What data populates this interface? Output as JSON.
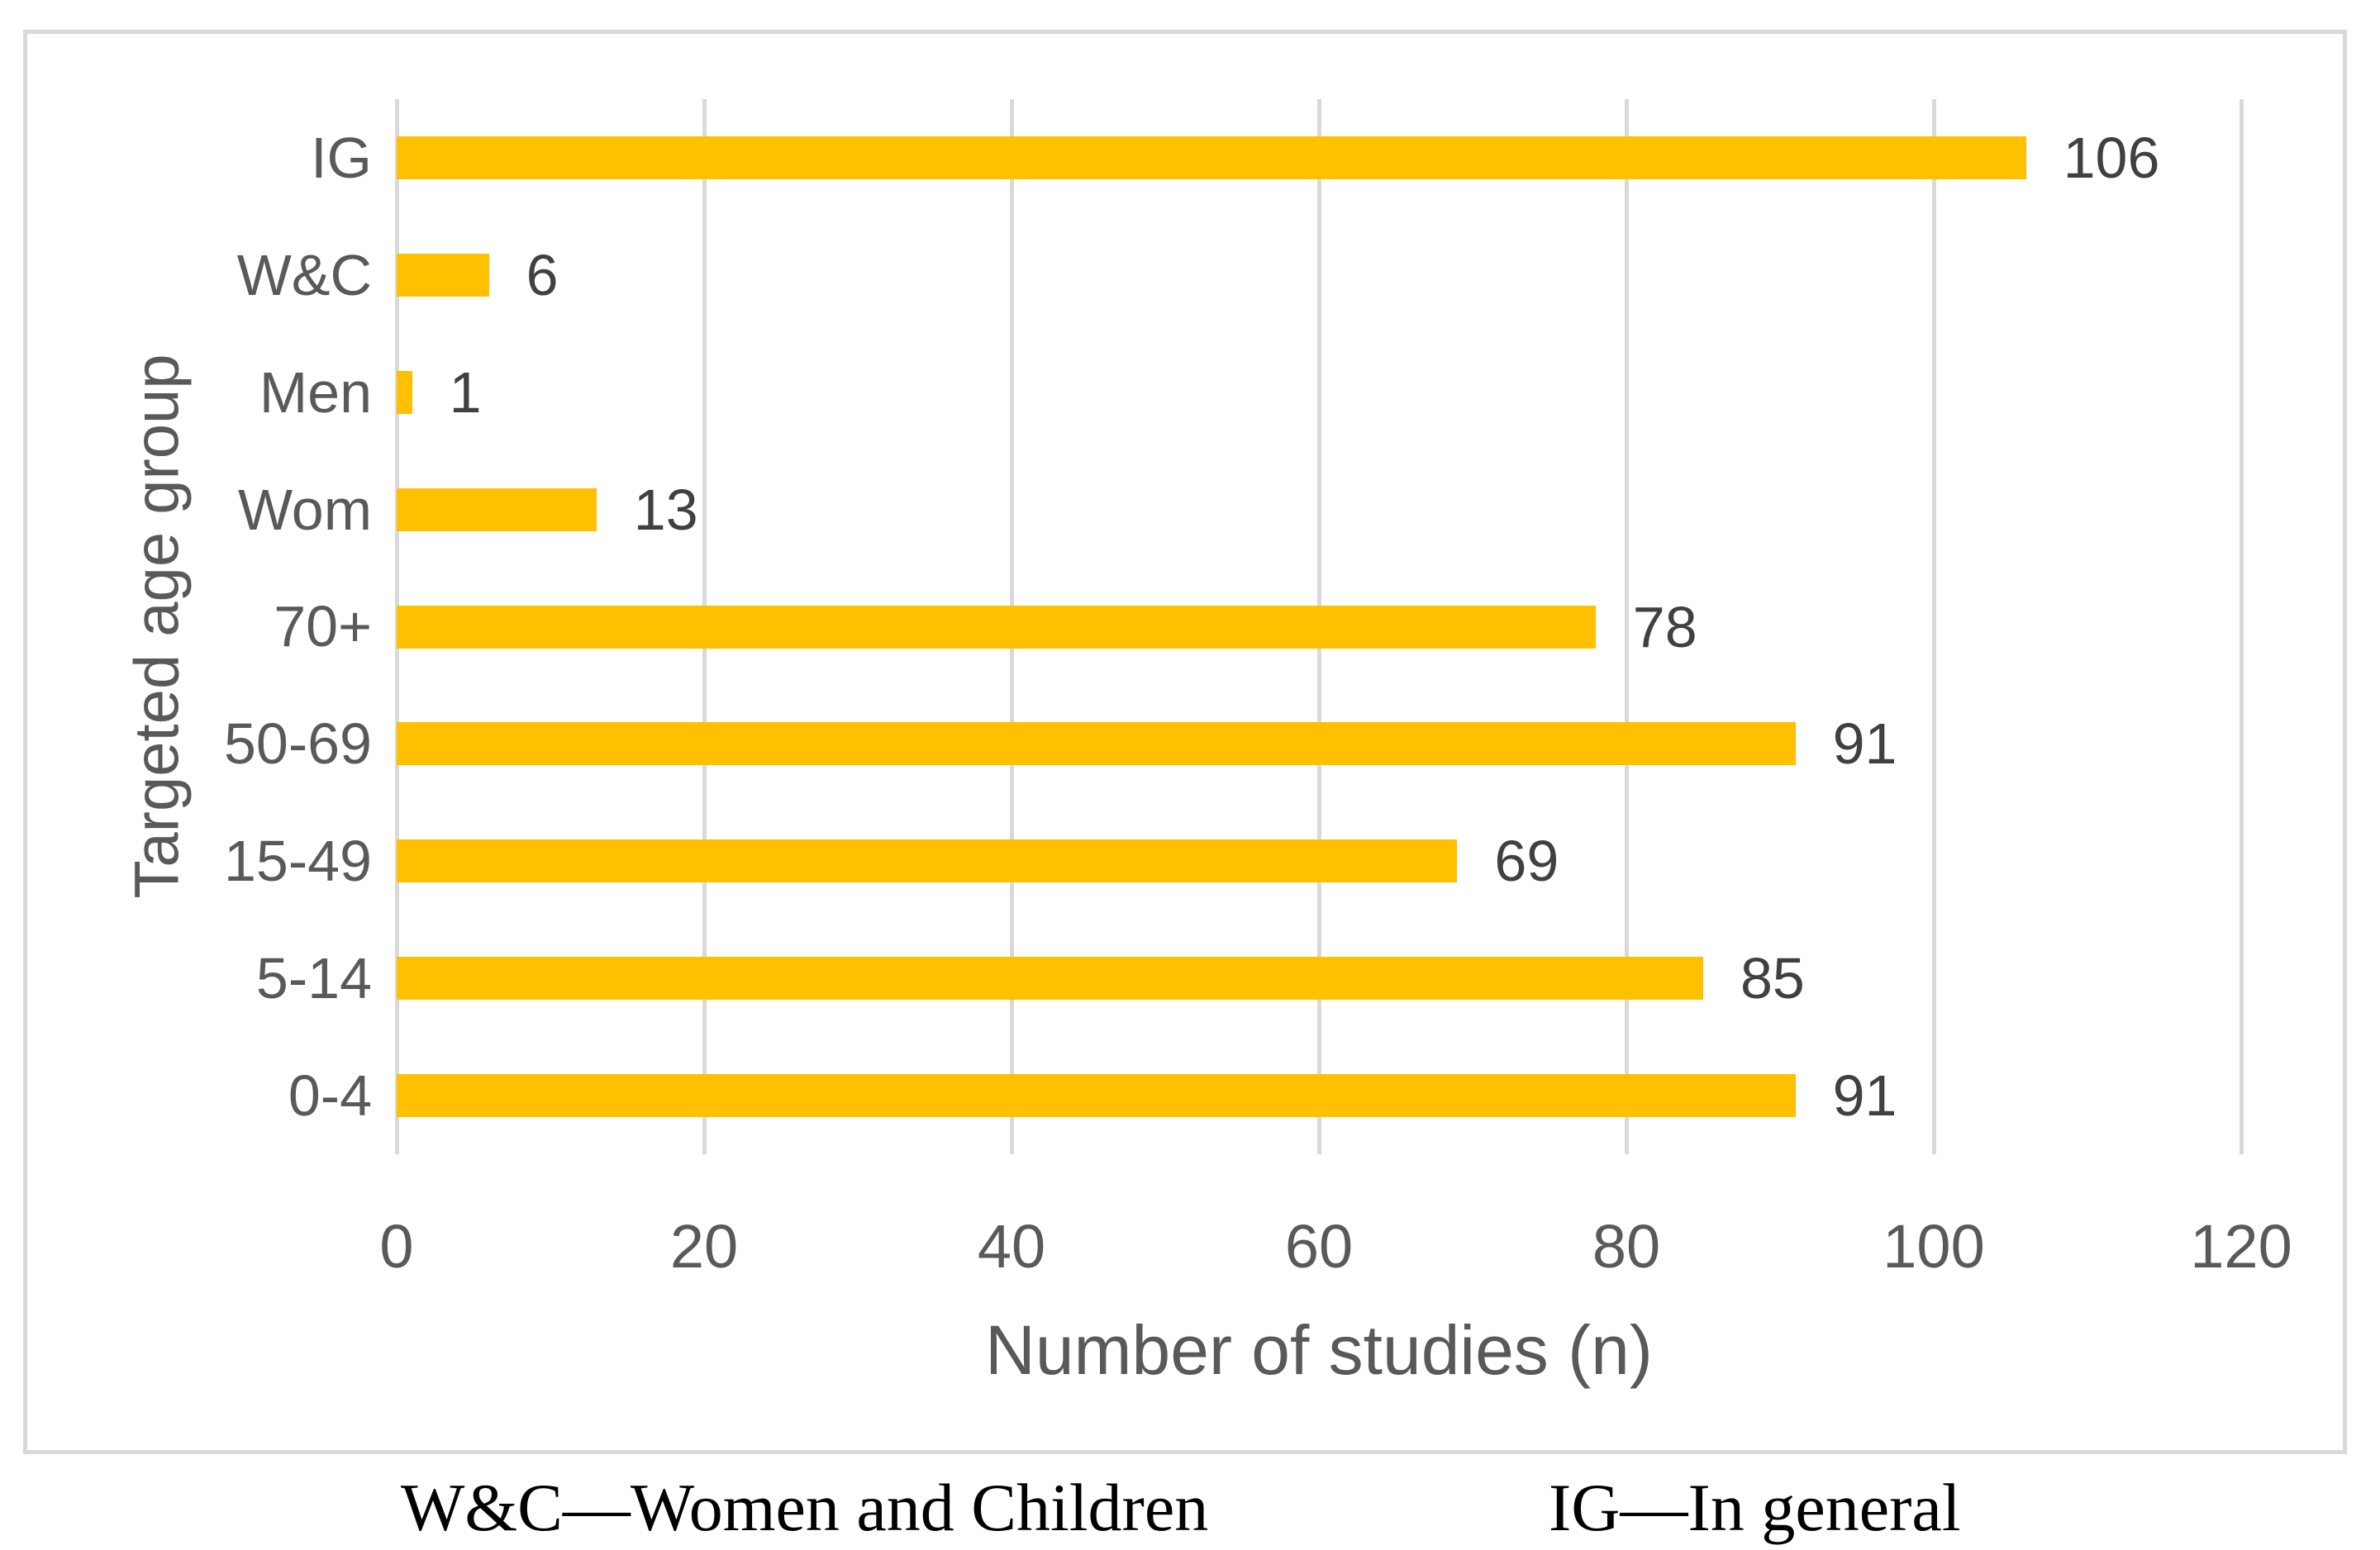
{
  "chart_data": {
    "type": "bar",
    "orientation": "horizontal",
    "title": "",
    "xlabel": "Number of studies (n)",
    "ylabel": "Targeted age group",
    "categories": [
      "IG",
      "W&C",
      "Men",
      "Wom",
      "70+",
      "50-69",
      "15-49",
      "5-14",
      "0-4"
    ],
    "values": [
      106,
      6,
      1,
      13,
      78,
      91,
      69,
      85,
      91
    ],
    "xlim": [
      0,
      120
    ],
    "xticks": [
      0,
      20,
      40,
      60,
      80,
      100,
      120
    ],
    "grid": "vertical",
    "legend": "none",
    "data_labels": true,
    "bar_color": "#ffc000",
    "gridline_color": "#d9d9d9",
    "axis_text_color": "#595959",
    "data_label_color": "#404040"
  },
  "footnotes": {
    "left": "W&C—Women and Children",
    "right": "IG—In general"
  }
}
